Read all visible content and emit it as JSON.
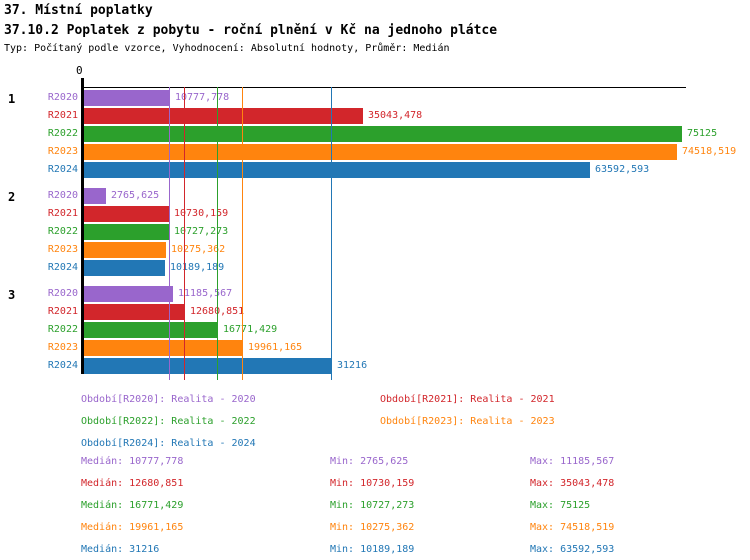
{
  "header": {
    "title": "37. Místní poplatky",
    "subtitle": "37.10.2 Poplatek z pobytu - roční plnění v Kč na jednoho plátce",
    "meta": "Typ: Počítaný podle vzorce, Vyhodnocení: Absolutní hodnoty, Průměr: Medián"
  },
  "colors": {
    "R2020": "#9966CC",
    "R2021": "#D2262B",
    "R2022": "#2CA02C",
    "R2023": "#FF840E",
    "R2024": "#2277B5",
    "axis": "#000000"
  },
  "chart_data": {
    "type": "bar",
    "orientation": "horizontal",
    "title": "37.10.2 Poplatek z pobytu - roční plnění v Kč na jednoho plátce",
    "axis_zero_label": "0",
    "xlim": [
      0,
      75125
    ],
    "grid": false,
    "series_names": [
      "R2020",
      "R2021",
      "R2022",
      "R2023",
      "R2024"
    ],
    "groups": [
      {
        "label": "1",
        "values": [
          10777.778,
          35043.478,
          75125,
          74518.519,
          63592.593
        ],
        "display": [
          "10777,778",
          "35043,478",
          "75125",
          "74518,519",
          "63592,593"
        ]
      },
      {
        "label": "2",
        "values": [
          2765.625,
          10730.159,
          10727.273,
          10275.362,
          10189.189
        ],
        "display": [
          "2765,625",
          "10730,159",
          "10727,273",
          "10275,362",
          "10189,189"
        ]
      },
      {
        "label": "3",
        "values": [
          11185.567,
          12680.851,
          16771.429,
          19961.165,
          31216
        ],
        "display": [
          "11185,567",
          "12680,851",
          "16771,429",
          "19961,165",
          "31216"
        ]
      }
    ],
    "median_lines": {
      "note": "vertical reference line per series at its median value",
      "values": [
        10777.778,
        12680.851,
        16771.429,
        19961.165,
        31216
      ]
    }
  },
  "legend": [
    {
      "series": "R2020",
      "label": "Období[R2020]: Realita - 2020"
    },
    {
      "series": "R2021",
      "label": "Období[R2021]: Realita - 2021"
    },
    {
      "series": "R2022",
      "label": "Období[R2022]: Realita - 2022"
    },
    {
      "series": "R2023",
      "label": "Období[R2023]: Realita - 2023"
    },
    {
      "series": "R2024",
      "label": "Období[R2024]: Realita - 2024"
    }
  ],
  "stats": [
    {
      "series": "R2020",
      "median": "Medián: 10777,778",
      "min": "Min: 2765,625",
      "max": "Max: 11185,567"
    },
    {
      "series": "R2021",
      "median": "Medián: 12680,851",
      "min": "Min: 10730,159",
      "max": "Max: 35043,478"
    },
    {
      "series": "R2022",
      "median": "Medián: 16771,429",
      "min": "Min: 10727,273",
      "max": "Max: 75125"
    },
    {
      "series": "R2023",
      "median": "Medián: 19961,165",
      "min": "Min: 10275,362",
      "max": "Max: 74518,519"
    },
    {
      "series": "R2024",
      "median": "Medián: 31216",
      "min": "Min: 10189,189",
      "max": "Max: 63592,593"
    }
  ]
}
